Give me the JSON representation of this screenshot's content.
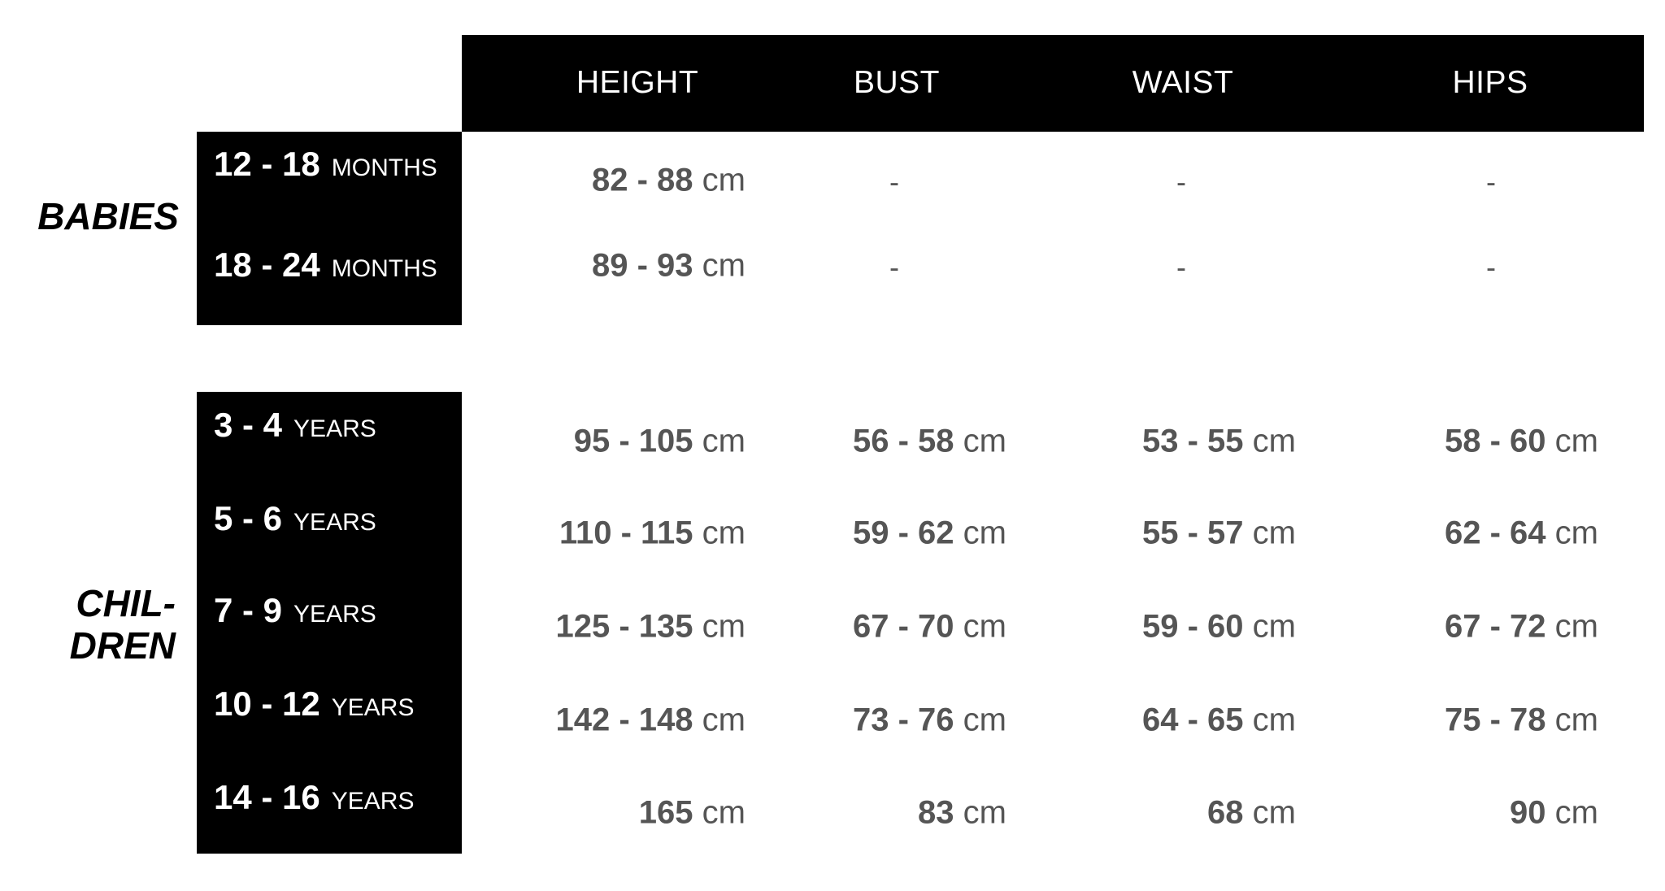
{
  "header": {
    "columns": [
      "HEIGHT",
      "BUST",
      "WAIST",
      "HIPS"
    ]
  },
  "groups": [
    {
      "label": "BABIES",
      "rows": [
        {
          "range": "12 - 18",
          "unit": "MONTHS",
          "values": [
            {
              "num": "82 - 88",
              "unit": "cm"
            },
            {
              "num": "-"
            },
            {
              "num": "-"
            },
            {
              "num": "-"
            }
          ]
        },
        {
          "range": "18 - 24",
          "unit": "MONTHS",
          "values": [
            {
              "num": "89 - 93",
              "unit": "cm"
            },
            {
              "num": "-"
            },
            {
              "num": "-"
            },
            {
              "num": "-"
            }
          ]
        }
      ]
    },
    {
      "label_line1": "CHIL-",
      "label_line2": "DREN",
      "rows": [
        {
          "range": "3 - 4",
          "unit": "YEARS",
          "values": [
            {
              "num": "95 - 105",
              "unit": "cm"
            },
            {
              "num": "56 - 58",
              "unit": "cm"
            },
            {
              "num": "53 - 55",
              "unit": "cm"
            },
            {
              "num": "58 - 60",
              "unit": "cm"
            }
          ]
        },
        {
          "range": "5 - 6",
          "unit": "YEARS",
          "values": [
            {
              "num": "110 - 115",
              "unit": "cm"
            },
            {
              "num": "59 - 62",
              "unit": "cm"
            },
            {
              "num": "55 - 57",
              "unit": "cm"
            },
            {
              "num": "62 - 64",
              "unit": "cm"
            }
          ]
        },
        {
          "range": "7 - 9",
          "unit": "YEARS",
          "values": [
            {
              "num": "125 - 135",
              "unit": "cm"
            },
            {
              "num": "67 - 70",
              "unit": "cm"
            },
            {
              "num": "59 - 60",
              "unit": "cm"
            },
            {
              "num": "67 - 72",
              "unit": "cm"
            }
          ]
        },
        {
          "range": "10 - 12",
          "unit": "YEARS",
          "values": [
            {
              "num": "142 - 148",
              "unit": "cm"
            },
            {
              "num": "73 - 76",
              "unit": "cm"
            },
            {
              "num": "64 - 65",
              "unit": "cm"
            },
            {
              "num": "75 - 78",
              "unit": "cm"
            }
          ]
        },
        {
          "range": "14 - 16",
          "unit": "YEARS",
          "values": [
            {
              "num": "165",
              "unit": "cm"
            },
            {
              "num": "83",
              "unit": "cm"
            },
            {
              "num": "68",
              "unit": "cm"
            },
            {
              "num": "90",
              "unit": "cm"
            }
          ]
        }
      ]
    }
  ],
  "colors": {
    "band": "#000000",
    "value_text": "#555555"
  }
}
